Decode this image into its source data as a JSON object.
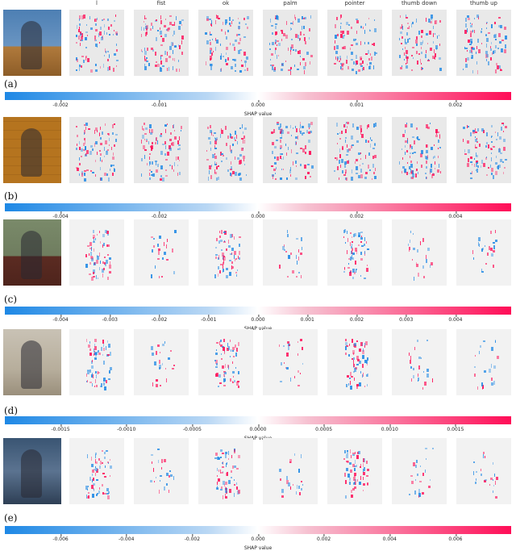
{
  "columns": [
    "l",
    "fist",
    "ok",
    "palm",
    "pointer",
    "thumb down",
    "thumb up"
  ],
  "axis_title": "SHAP value",
  "colors": {
    "negative": "#1e88e5",
    "positive": "#ff0d57"
  },
  "panels": [
    {
      "label": "(a)",
      "ticks": [
        "-0.002",
        "-0.001",
        "0.000",
        "0.001",
        "0.002"
      ],
      "scene": "figure-on-blue-background",
      "show_axis_title": true
    },
    {
      "label": "(b)",
      "ticks": [
        "-0.004",
        "-0.002",
        "0.000",
        "0.002",
        "0.004"
      ],
      "scene": "figure-on-orange-grid",
      "show_axis_title": false
    },
    {
      "label": "(c)",
      "ticks": [
        "-0.004",
        "-0.003",
        "-0.002",
        "-0.001",
        "0.000",
        "0.001",
        "0.002",
        "0.003",
        "0.004"
      ],
      "scene": "woman-raising-hand",
      "show_axis_title": true
    },
    {
      "label": "(d)",
      "ticks": [
        "-0.0015",
        "-0.0010",
        "-0.0005",
        "0.0000",
        "0.0005",
        "0.0010",
        "0.0015"
      ],
      "scene": "person-in-room",
      "show_axis_title": true
    },
    {
      "label": "(e)",
      "ticks": [
        "-0.006",
        "-0.004",
        "-0.002",
        "0.000",
        "0.002",
        "0.004",
        "0.006"
      ],
      "scene": "woman-pointing-up",
      "show_axis_title": true
    }
  ]
}
